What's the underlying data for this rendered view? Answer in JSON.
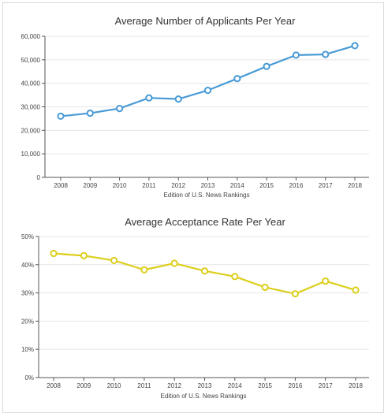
{
  "chart_data": [
    {
      "type": "line",
      "title": "Average Number of Applicants Per Year",
      "xlabel": "Edition of U.S. News Rankings",
      "ylabel": "",
      "categories": [
        "2008",
        "2009",
        "2010",
        "2011",
        "2012",
        "2013",
        "2014",
        "2015",
        "2016",
        "2017",
        "2018"
      ],
      "values": [
        26000,
        27300,
        29300,
        33800,
        33300,
        37000,
        42000,
        47200,
        52000,
        52300,
        56000
      ],
      "ylim": [
        0,
        60000
      ],
      "yticks": [
        0,
        10000,
        20000,
        30000,
        40000,
        50000,
        60000
      ],
      "ytick_labels": [
        "0",
        "10,000",
        "20,000",
        "30,000",
        "40,000",
        "50,000",
        "60,000"
      ],
      "color": "#4a9bd6",
      "grid": true,
      "legend": "none"
    },
    {
      "type": "line",
      "title": "Average Acceptance Rate Per Year",
      "xlabel": "Edition of U.S. News Rankings",
      "ylabel": "",
      "categories": [
        "2008",
        "2009",
        "2010",
        "2011",
        "2012",
        "2013",
        "2014",
        "2015",
        "2016",
        "2017",
        "2018"
      ],
      "values": [
        44,
        43.2,
        41.5,
        38.2,
        40.5,
        37.8,
        35.8,
        32,
        29.7,
        34.2,
        31
      ],
      "ylim": [
        0,
        50
      ],
      "yticks": [
        0,
        10,
        20,
        30,
        40,
        50
      ],
      "ytick_labels": [
        "0%",
        "10%",
        "20%",
        "30%",
        "40%",
        "50%"
      ],
      "color": "#dccf1d",
      "grid": true,
      "legend": "none"
    }
  ]
}
